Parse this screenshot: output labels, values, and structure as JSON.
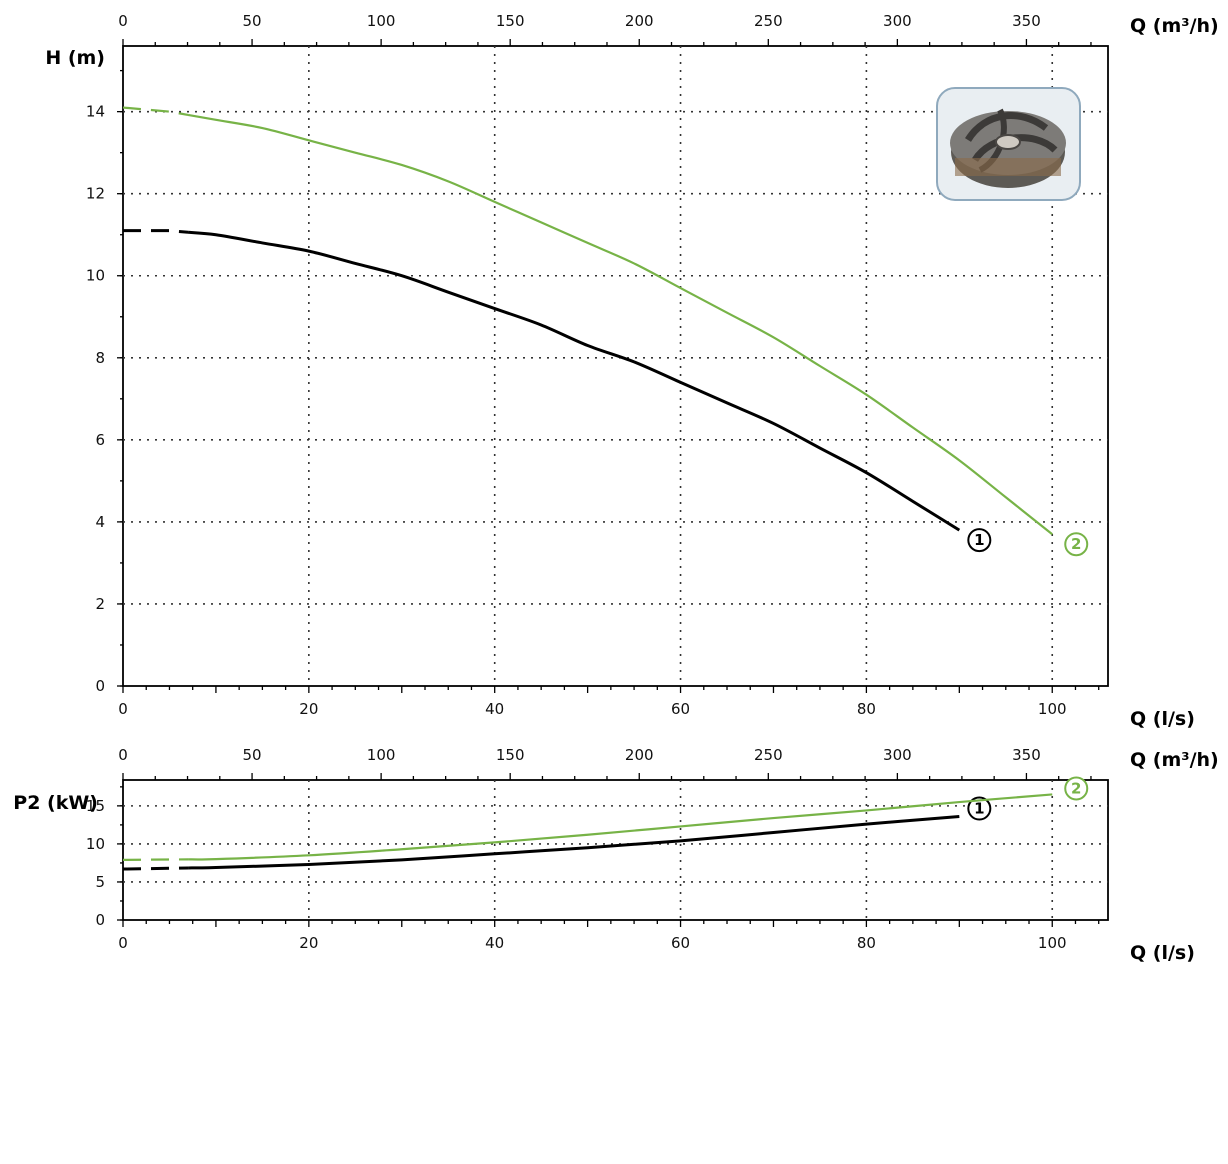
{
  "chart_data": [
    {
      "type": "line",
      "xlabel": "Q (l/s)",
      "x2label": "Q (m³/h)",
      "ylabel": "H (m)",
      "xlim": [
        0,
        106
      ],
      "x2lim": [
        0,
        381.6
      ],
      "ylim": [
        0,
        15.6
      ],
      "xticks": [
        "0",
        "20",
        "40",
        "60",
        "80",
        "100"
      ],
      "x2ticks": [
        "0",
        "50",
        "100",
        "150",
        "200",
        "250",
        "300",
        "350"
      ],
      "yticks": [
        "0",
        "2",
        "4",
        "6",
        "8",
        "10",
        "12",
        "14"
      ],
      "grid": true,
      "series": [
        {
          "name": "1",
          "color": "#000000",
          "dashed_until_x": 7,
          "x": [
            0,
            5,
            10,
            15,
            20,
            25,
            30,
            35,
            40,
            45,
            50,
            55,
            60,
            65,
            70,
            75,
            80,
            85,
            90
          ],
          "y": [
            11.1,
            11.1,
            11.0,
            10.8,
            10.6,
            10.3,
            10.0,
            9.6,
            9.2,
            8.8,
            8.3,
            7.9,
            7.4,
            6.9,
            6.4,
            5.8,
            5.2,
            4.5,
            3.8
          ]
        },
        {
          "name": "2",
          "color": "#77b347",
          "dashed_until_x": 7,
          "x": [
            0,
            5,
            10,
            15,
            20,
            25,
            30,
            35,
            40,
            45,
            50,
            55,
            60,
            65,
            70,
            75,
            80,
            85,
            90,
            95,
            100
          ],
          "y": [
            14.1,
            14.0,
            13.8,
            13.6,
            13.3,
            13.0,
            12.7,
            12.3,
            11.8,
            11.3,
            10.8,
            10.3,
            9.7,
            9.1,
            8.5,
            7.8,
            7.1,
            6.3,
            5.5,
            4.6,
            3.7
          ]
        }
      ]
    },
    {
      "type": "line",
      "xlabel": "Q (l/s)",
      "x2label": "Q (m³/h)",
      "ylabel": "P2 (kW)",
      "xlim": [
        0,
        106
      ],
      "x2lim": [
        0,
        381.6
      ],
      "ylim": [
        0,
        18.4
      ],
      "xticks": [
        "0",
        "20",
        "40",
        "60",
        "80",
        "100"
      ],
      "x2ticks": [
        "0",
        "50",
        "100",
        "150",
        "200",
        "250",
        "300",
        "350"
      ],
      "yticks": [
        "0",
        "5",
        "10",
        "15"
      ],
      "grid": true,
      "series": [
        {
          "name": "1",
          "color": "#000000",
          "dashed_until_x": 7,
          "x": [
            0,
            10,
            20,
            30,
            40,
            50,
            60,
            70,
            80,
            90
          ],
          "y": [
            6.7,
            6.9,
            7.3,
            7.9,
            8.7,
            9.5,
            10.4,
            11.5,
            12.6,
            13.6
          ]
        },
        {
          "name": "2",
          "color": "#77b347",
          "dashed_until_x": 7,
          "x": [
            0,
            10,
            20,
            30,
            40,
            50,
            60,
            70,
            80,
            90,
            100
          ],
          "y": [
            7.9,
            8.0,
            8.5,
            9.3,
            10.2,
            11.2,
            12.3,
            13.4,
            14.4,
            15.5,
            16.5
          ]
        }
      ]
    }
  ]
}
